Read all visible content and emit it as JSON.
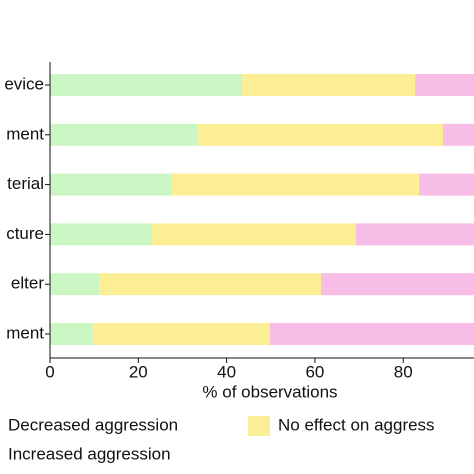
{
  "chart_data": {
    "type": "stacked-bar-horizontal",
    "categories": [
      "evice",
      "ment",
      "terial",
      "cture",
      "elter",
      "ment"
    ],
    "series": [
      {
        "name": "Decreased aggression",
        "color": "#ccf5c4",
        "values": [
          43.5,
          33.3,
          27.6,
          23.1,
          11.1,
          9.7
        ]
      },
      {
        "name": "No effect on aggress",
        "color": "#fbee94",
        "values": [
          39.2,
          55.7,
          56.0,
          46.2,
          50.3,
          40.1
        ]
      },
      {
        "name": "Increased aggression",
        "color": "#f8bde6",
        "values": [
          17.3,
          11.0,
          16.4,
          30.7,
          38.6,
          50.2
        ]
      }
    ],
    "xlabel": "% of observations",
    "xlim": [
      0,
      100
    ],
    "xticks": [
      0,
      20,
      40,
      60,
      80
    ]
  }
}
